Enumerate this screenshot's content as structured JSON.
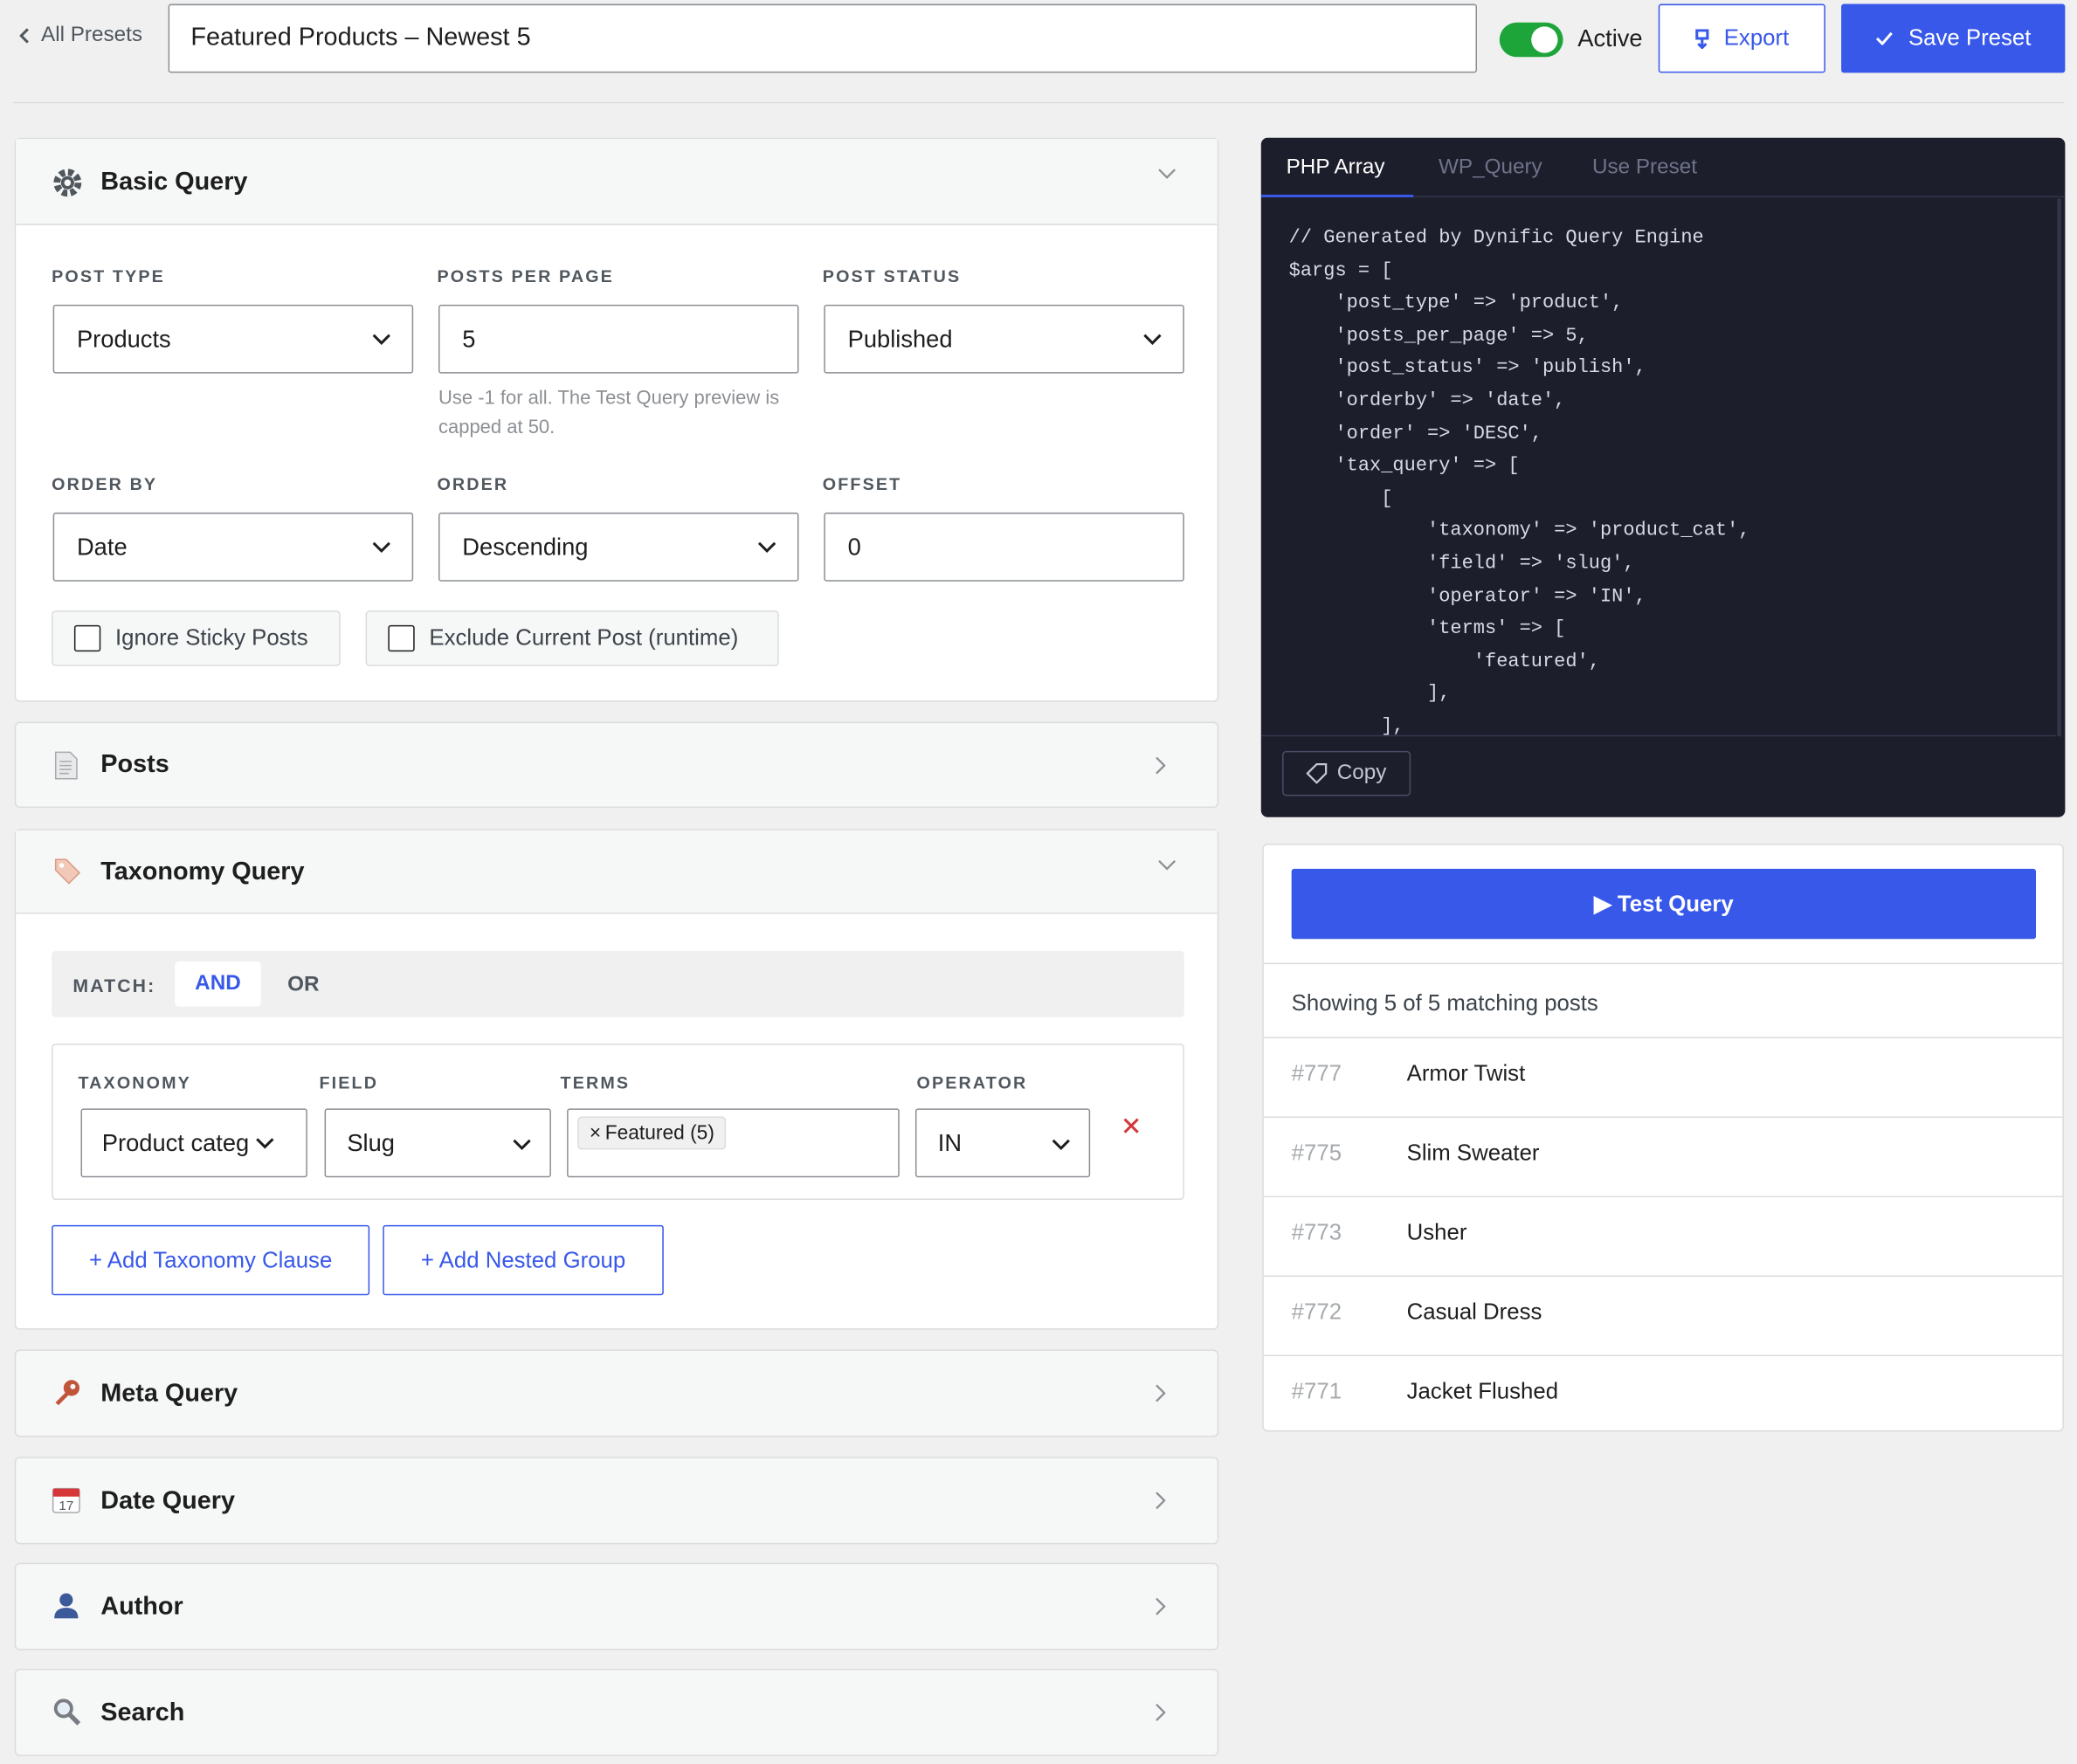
{
  "header": {
    "back": "All Presets",
    "preset_name": "Featured Products – Newest 5",
    "active_label": "Active",
    "export": "Export",
    "save": "Save Preset"
  },
  "basic_query": {
    "title": "Basic Query",
    "fields": [
      {
        "label": "POST TYPE",
        "value": "Products"
      },
      {
        "label": "POSTS PER PAGE",
        "value": "5",
        "help": "Use -1 for all. The Test Query preview is capped at 50."
      },
      {
        "label": "POST STATUS",
        "value": "Published"
      },
      {
        "label": "ORDER BY",
        "value": "Date"
      },
      {
        "label": "ORDER",
        "value": "Descending"
      },
      {
        "label": "OFFSET",
        "value": "0"
      }
    ],
    "checkboxes": [
      "Ignore Sticky Posts",
      "Exclude Current Post (runtime)"
    ]
  },
  "posts": {
    "title": "Posts"
  },
  "taxonomy_query": {
    "title": "Taxonomy Query",
    "match_label": "MATCH:",
    "match_options": [
      "AND",
      "OR"
    ],
    "columns": [
      "TAXONOMY",
      "FIELD",
      "TERMS",
      "OPERATOR"
    ],
    "clause": {
      "taxonomy": "Product categ",
      "field": "Slug",
      "term_remove": "×",
      "term": "Featured (5)",
      "operator": "IN"
    },
    "buttons": [
      "+ Add Taxonomy Clause",
      "+ Add Nested Group"
    ]
  },
  "collapsed_sections": [
    "Meta Query",
    "Date Query",
    "Author",
    "Search"
  ],
  "code_panel": {
    "tabs": [
      "PHP Array",
      "WP_Query",
      "Use Preset"
    ],
    "lines": [
      "// Generated by Dynific Query Engine",
      "$args = [",
      "    'post_type' => 'product',",
      "    'posts_per_page' => 5,",
      "    'post_status' => 'publish',",
      "    'orderby' => 'date',",
      "    'order' => 'DESC',",
      "    'tax_query' => [",
      "        [",
      "            'taxonomy' => 'product_cat',",
      "            'field' => 'slug',",
      "            'operator' => 'IN',",
      "            'terms' => [",
      "                'featured',",
      "            ],",
      "        ],"
    ],
    "copy": "Copy"
  },
  "results": {
    "button": "▶ Test Query",
    "summary": "Showing 5 of 5 matching posts",
    "rows": [
      {
        "id": "#777",
        "title": "Armor Twist"
      },
      {
        "id": "#775",
        "title": "Slim Sweater"
      },
      {
        "id": "#773",
        "title": "Usher"
      },
      {
        "id": "#772",
        "title": "Casual Dress"
      },
      {
        "id": "#771",
        "title": "Jacket Flushed"
      }
    ]
  }
}
